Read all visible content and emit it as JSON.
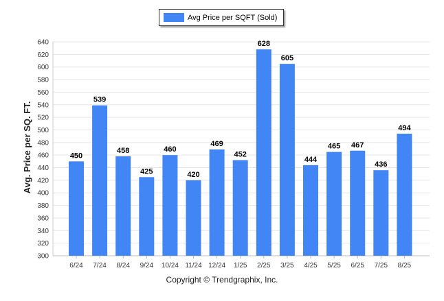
{
  "chart_data": {
    "type": "bar",
    "title": "",
    "xlabel": "",
    "ylabel": "Avg. Price per SQ. FT.",
    "legend": {
      "position": "top-center",
      "entries": [
        "Avg Price per SQFT (Sold)"
      ]
    },
    "series": [
      {
        "name": "Avg Price per SQFT (Sold)",
        "color": "#4285f4",
        "values": [
          450,
          539,
          458,
          425,
          460,
          420,
          469,
          452,
          628,
          605,
          444,
          465,
          467,
          436,
          494
        ]
      }
    ],
    "categories": [
      "6/24",
      "7/24",
      "8/24",
      "9/24",
      "10/24",
      "11/24",
      "12/24",
      "1/25",
      "2/25",
      "3/25",
      "4/25",
      "5/25",
      "6/25",
      "7/25",
      "8/25"
    ],
    "data_labels": [
      "450",
      "539",
      "458",
      "425",
      "460",
      "420",
      "469",
      "452",
      "628",
      "605",
      "444",
      "465",
      "467",
      "436",
      "494"
    ],
    "yticks": [
      "300",
      "320",
      "340",
      "360",
      "380",
      "400",
      "420",
      "440",
      "460",
      "480",
      "500",
      "520",
      "540",
      "560",
      "580",
      "600",
      "620",
      "640"
    ],
    "ylim": [
      300,
      640
    ],
    "grid": true,
    "bar_color": "#4285f4",
    "grid_color": "#e6e6e6"
  },
  "footer": {
    "copyright": "Copyright © Trendgraphix, Inc."
  }
}
